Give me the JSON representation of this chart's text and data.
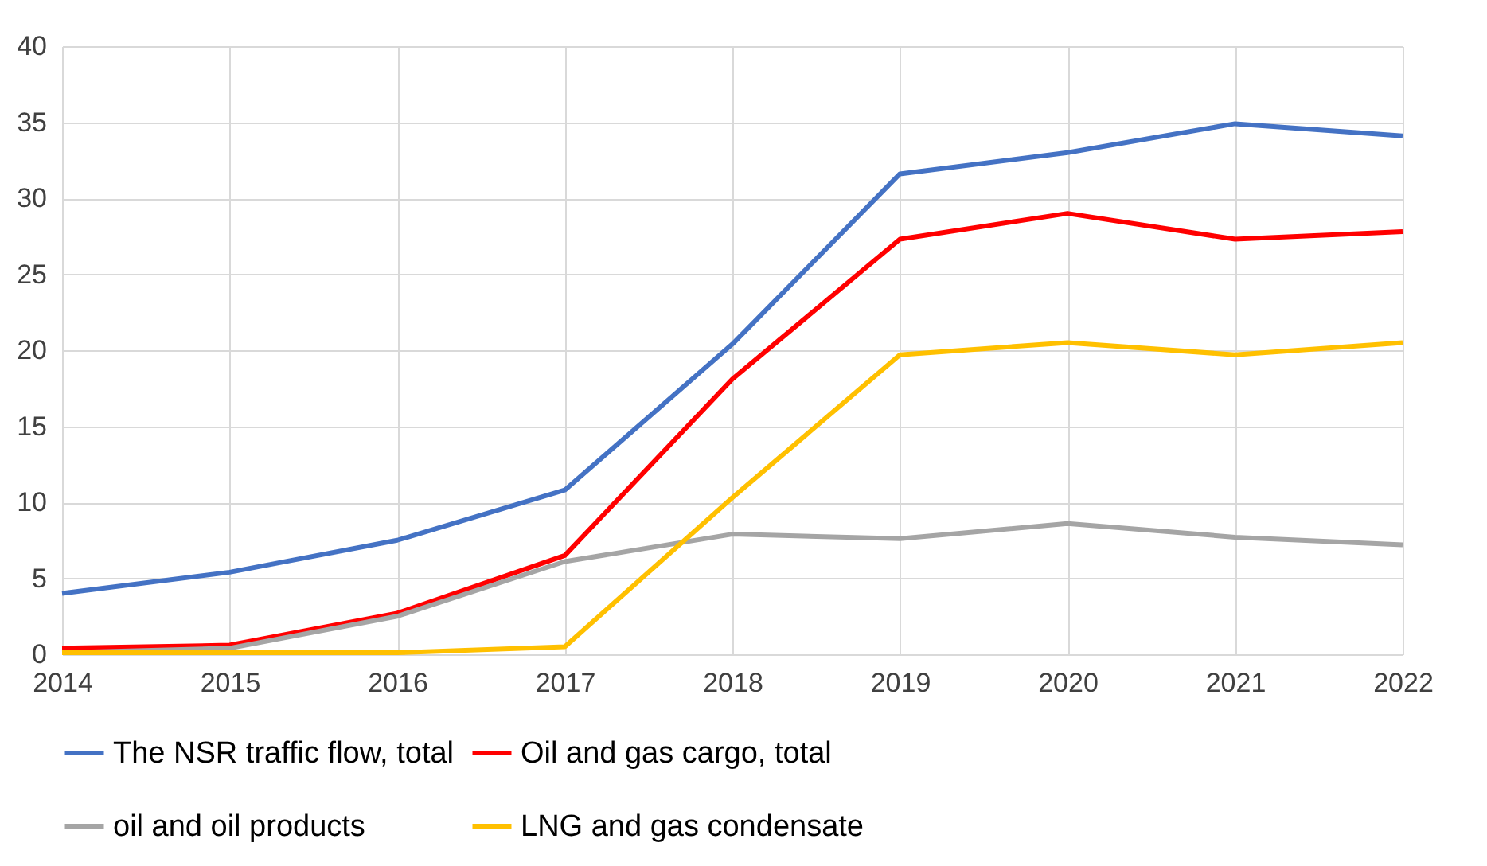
{
  "chart_data": {
    "type": "line",
    "x": [
      2014,
      2015,
      2016,
      2017,
      2018,
      2019,
      2020,
      2021,
      2022
    ],
    "xlim": [
      2014,
      2022
    ],
    "xticks": [
      2014,
      2015,
      2016,
      2017,
      2018,
      2019,
      2020,
      2021,
      2022
    ],
    "ylim": [
      0,
      40
    ],
    "yticks": [
      0,
      5,
      10,
      15,
      20,
      25,
      30,
      35,
      40
    ],
    "grid": true,
    "legend": "bottom",
    "marker": "none",
    "line_style": "solid",
    "series": [
      {
        "name": "The NSR traffic flow, total",
        "color": "#4472c4",
        "values": [
          4.0,
          5.4,
          7.5,
          10.8,
          20.4,
          31.6,
          33.0,
          34.9,
          34.1
        ]
      },
      {
        "name": "Oil and gas cargo, total",
        "color": "#ff0000",
        "values": [
          0.4,
          0.6,
          2.7,
          6.5,
          18.1,
          27.3,
          29.0,
          27.3,
          27.8
        ]
      },
      {
        "name": "oil and oil products",
        "color": "#a5a5a5",
        "values": [
          0.1,
          0.4,
          2.5,
          6.1,
          7.9,
          7.6,
          8.6,
          7.7,
          7.2
        ]
      },
      {
        "name": "LNG and gas condensate",
        "color": "#ffc000",
        "values": [
          0.1,
          0.1,
          0.1,
          0.5,
          10.3,
          19.7,
          20.5,
          19.7,
          20.5
        ]
      }
    ]
  }
}
